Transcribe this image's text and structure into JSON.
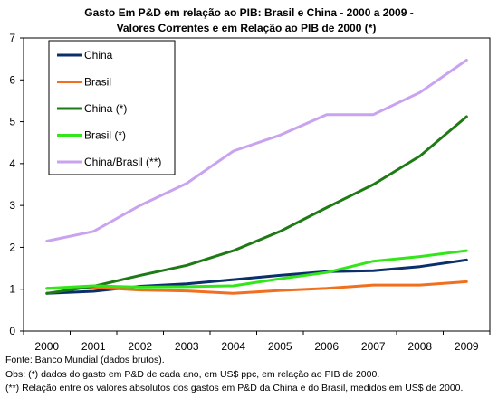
{
  "chart_data": {
    "type": "line",
    "title": "Gasto Em P&D em relação ao PIB: Brasil e  China - 2000 a 2009  -",
    "subtitle": "Valores Correntes e em Relação ao PIB de 2000 (*)",
    "xlabel": "",
    "ylabel": "",
    "categories": [
      "2000",
      "2001",
      "2002",
      "2003",
      "2004",
      "2005",
      "2006",
      "2007",
      "2008",
      "2009"
    ],
    "ylim": [
      0,
      7
    ],
    "yticks": [
      "0",
      "1",
      "2",
      "3",
      "4",
      "5",
      "6",
      "7"
    ],
    "grid": false,
    "legend_position": "top-left",
    "series": [
      {
        "name": "China",
        "color": "#0B2F6B",
        "values": [
          0.9,
          0.95,
          1.07,
          1.13,
          1.23,
          1.33,
          1.42,
          1.44,
          1.54,
          1.7
        ]
      },
      {
        "name": "Brasil",
        "color": "#F07020",
        "values": [
          1.02,
          1.04,
          0.98,
          0.96,
          0.9,
          0.97,
          1.02,
          1.1,
          1.1,
          1.18
        ]
      },
      {
        "name": "China (*)",
        "color": "#1E7A14",
        "values": [
          0.9,
          1.07,
          1.33,
          1.57,
          1.92,
          2.38,
          2.95,
          3.5,
          4.18,
          5.12
        ]
      },
      {
        "name": "Brasil (*)",
        "color": "#33E61A",
        "values": [
          1.02,
          1.08,
          1.05,
          1.06,
          1.08,
          1.25,
          1.4,
          1.67,
          1.78,
          1.92
        ]
      },
      {
        "name": "China/Brasil (**)",
        "color": "#C9A3F0",
        "values": [
          2.15,
          2.38,
          3.0,
          3.53,
          4.3,
          4.68,
          5.17,
          5.17,
          5.7,
          6.47
        ]
      }
    ]
  },
  "notes": {
    "source": "Fonte: Banco Mundial (dados brutos).",
    "obs": "Obs: (*) dados do gasto em P&D de cada ano, em US$ ppc, em relação ao PIB de 2000.",
    "ratio_note": "(**) Relação entre os valores absolutos dos gastos em P&D da China e do Brasil, medidos em US$ de 2000."
  }
}
